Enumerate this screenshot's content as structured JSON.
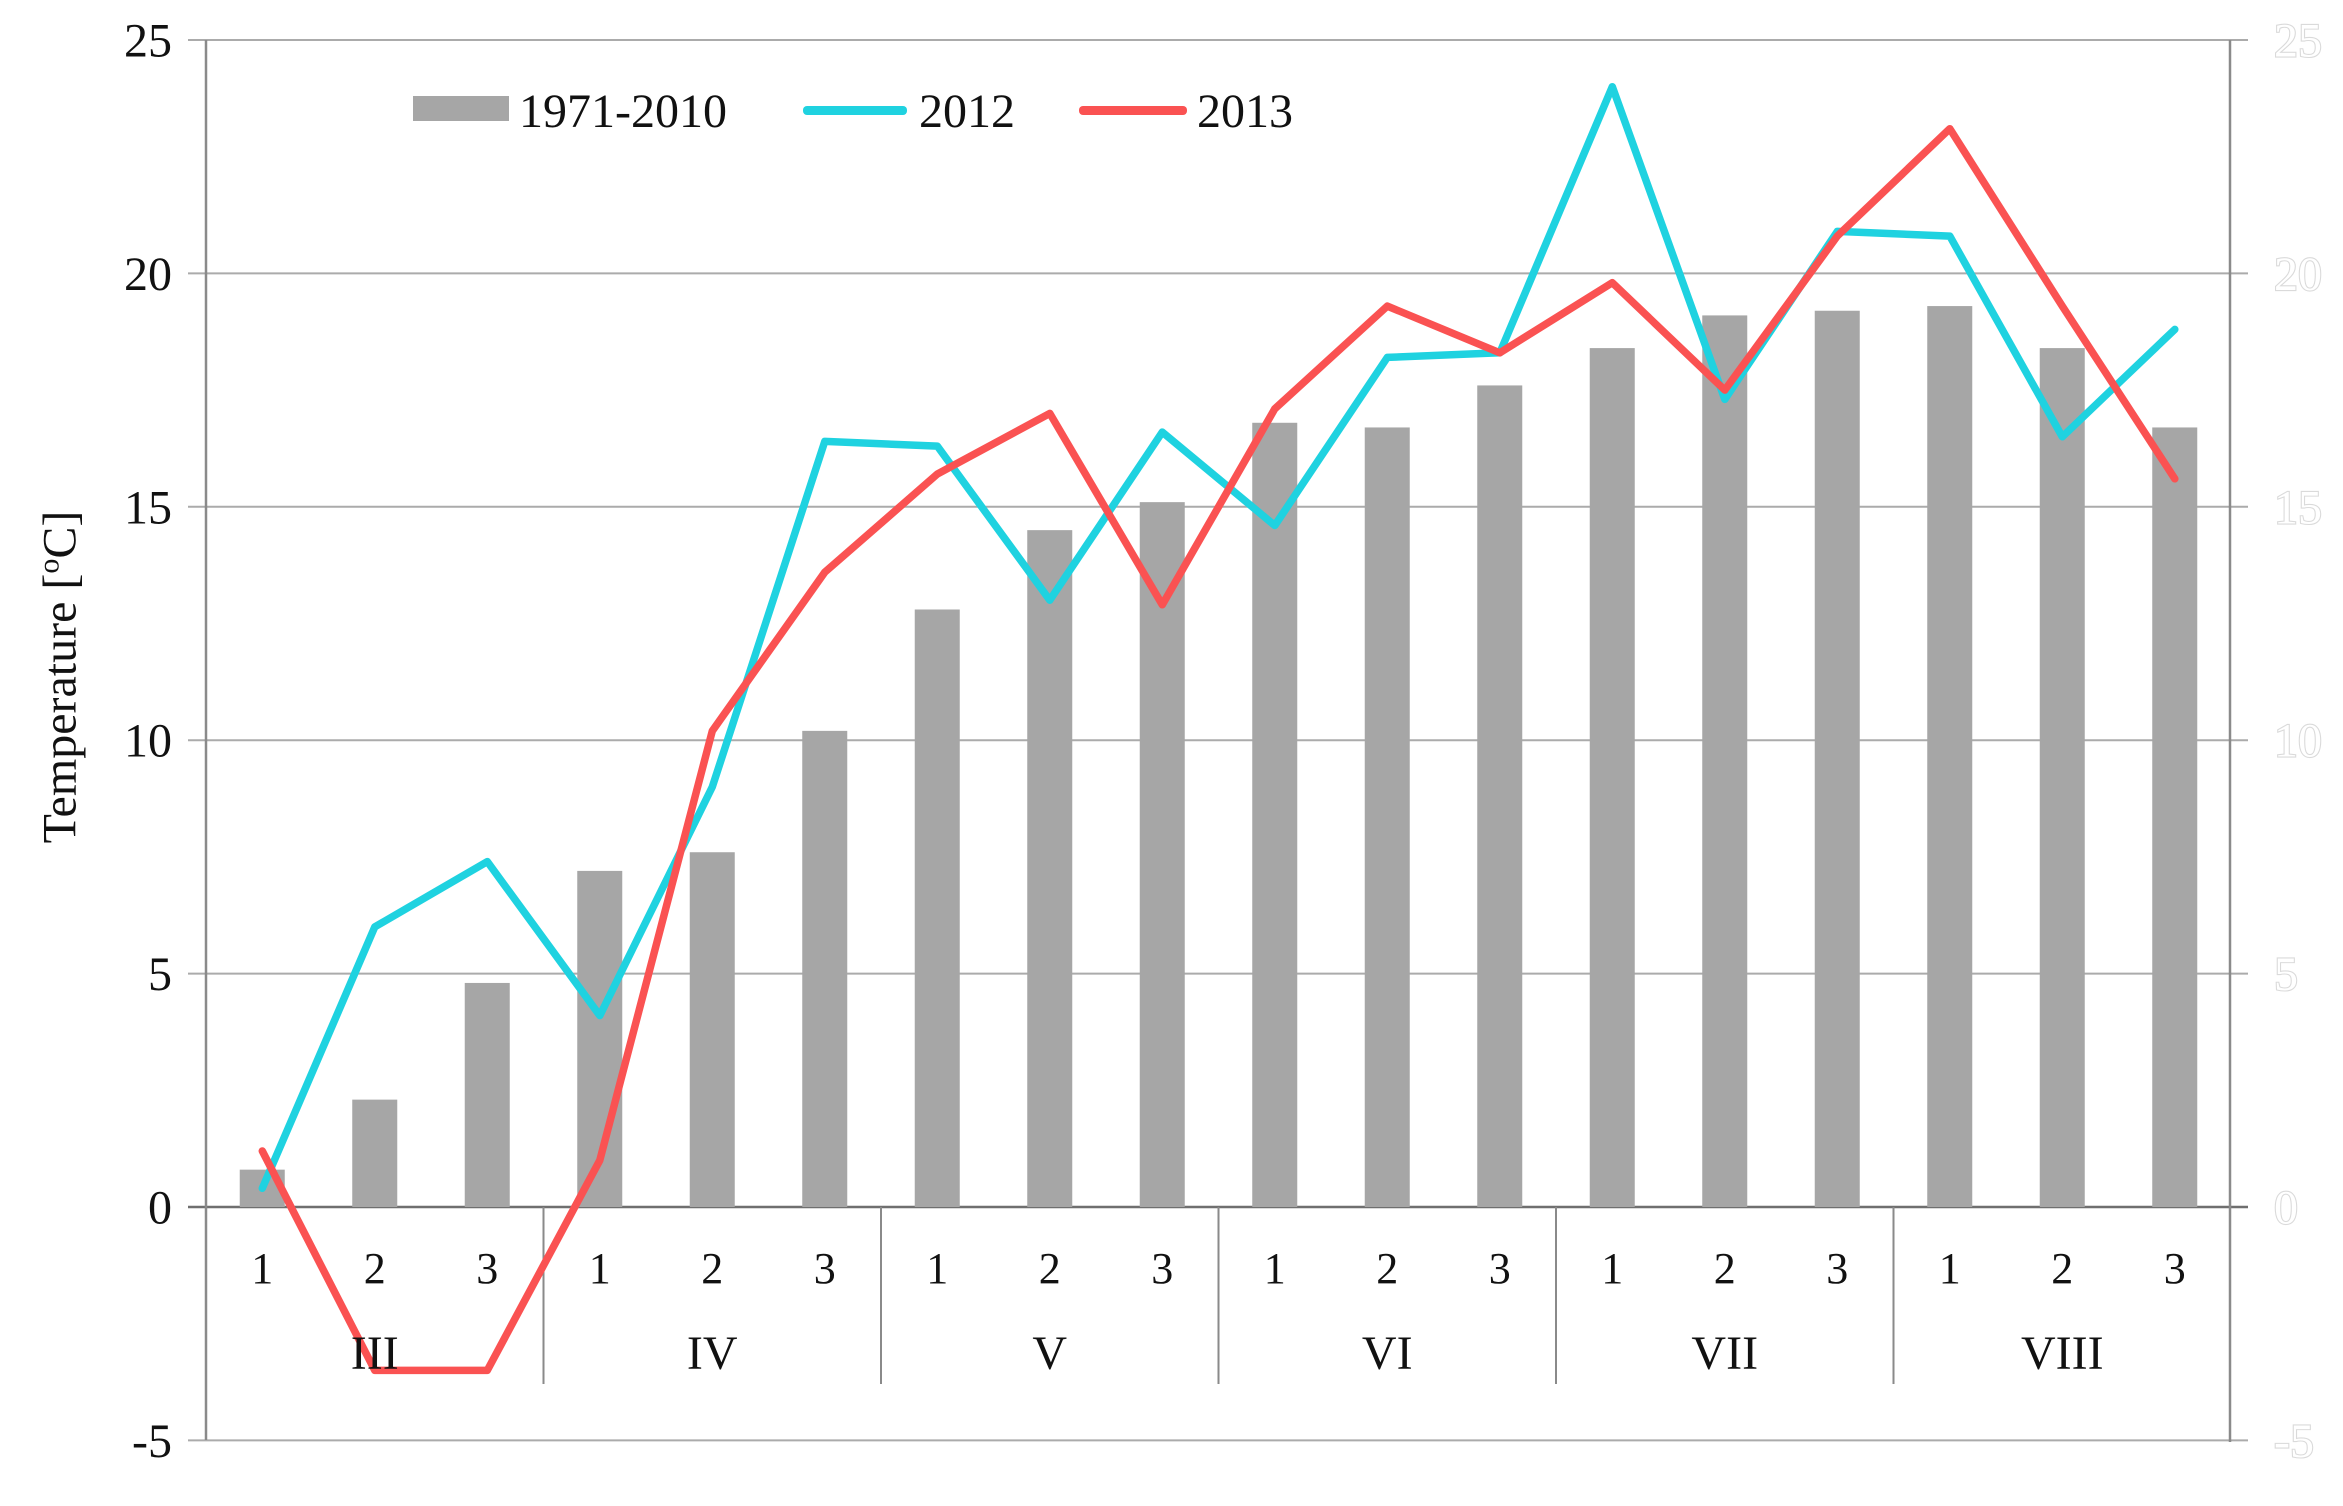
{
  "legend": {
    "items": [
      {
        "label": "1971-2010",
        "type": "bar"
      },
      {
        "label": "2012",
        "type": "line"
      },
      {
        "label": "2013",
        "type": "line"
      }
    ]
  },
  "axis": {
    "y_title_prefix": "Temperature [",
    "y_degree": "o",
    "y_title_suffix": "C]"
  },
  "colors": {
    "bar": "#a6a6a6",
    "line_2012": "#1fd2e0",
    "line_2013": "#fa5252",
    "gridline": "#ababab",
    "zero_axis": "#6f6f6f",
    "axis_line": "#8a8a8a",
    "tick_label": "#111111",
    "faint_right_label_stroke": "#dadada"
  },
  "chart_data": {
    "type": "combo-bar-line",
    "title": "",
    "ylabel": "Temperature [°C]",
    "ylim": [
      -5,
      25
    ],
    "ytick_step": 5,
    "ytick_labels": [
      "25",
      "20",
      "15",
      "10",
      "5",
      "0",
      "-5"
    ],
    "grid": "horizontal",
    "legend_position": "top-left-inside",
    "secondary_y_axis": {
      "visible": true,
      "same_scale": true,
      "label_style": "faint-white-outline"
    },
    "x_axis": {
      "months": [
        "III",
        "IV",
        "V",
        "VI",
        "VII",
        "VIII"
      ],
      "decades_per_month": [
        "1",
        "2",
        "3"
      ]
    },
    "series": [
      {
        "name": "1971-2010",
        "type": "bar",
        "color": "#a6a6a6",
        "values": [
          0.8,
          2.3,
          4.8,
          7.2,
          7.6,
          10.2,
          12.8,
          14.5,
          15.1,
          16.8,
          16.7,
          17.6,
          18.4,
          19.1,
          19.2,
          19.3,
          18.4,
          16.7
        ]
      },
      {
        "name": "2012",
        "type": "line",
        "color": "#1fd2e0",
        "values": [
          0.4,
          6.0,
          7.4,
          4.1,
          9.0,
          16.4,
          16.3,
          13.0,
          16.6,
          14.6,
          18.2,
          18.3,
          24.0,
          17.3,
          20.9,
          20.8,
          16.5,
          18.8
        ]
      },
      {
        "name": "2013",
        "type": "line",
        "color": "#fa5252",
        "values": [
          1.2,
          -3.5,
          -3.5,
          1.0,
          10.2,
          13.6,
          15.7,
          17.0,
          12.9,
          17.1,
          19.3,
          18.3,
          19.8,
          17.5,
          20.8,
          23.1,
          19.3,
          15.6
        ]
      }
    ]
  }
}
